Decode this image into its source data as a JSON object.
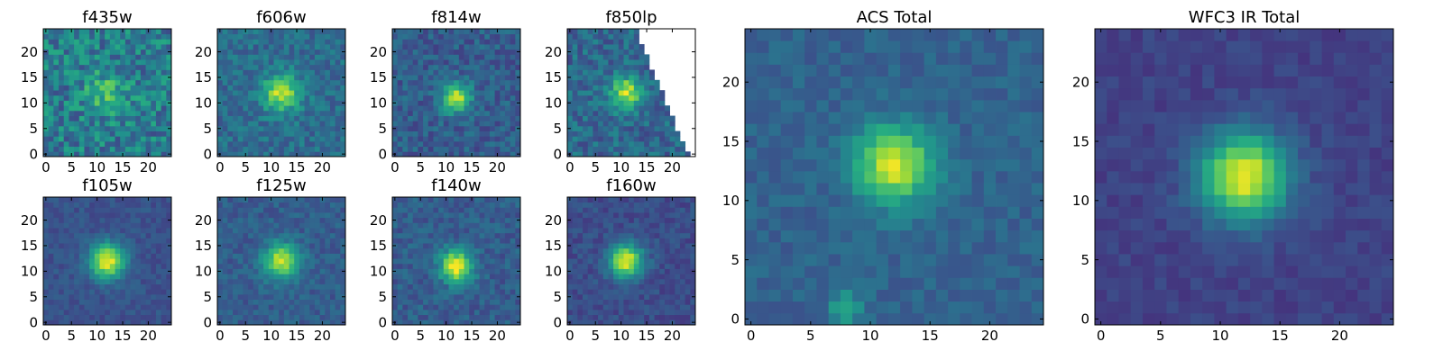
{
  "figure": {
    "colormap": "viridis",
    "background": "#ffffff",
    "frame_color": "#000000"
  },
  "chart_data": [
    {
      "type": "heatmap",
      "title": "f435w",
      "xlim": [
        0,
        24
      ],
      "ylim": [
        0,
        24
      ],
      "x_ticks": [
        0,
        5,
        10,
        15,
        20
      ],
      "y_ticks": [
        0,
        5,
        10,
        15,
        20
      ],
      "grid": false,
      "source_peak": [
        12,
        12
      ],
      "source_sigma": 3.0,
      "source_amplitude": 0.25,
      "noise_level": 0.38,
      "base_level": 0.42,
      "seed": 11,
      "masked_edge": false
    },
    {
      "type": "heatmap",
      "title": "f606w",
      "xlim": [
        0,
        24
      ],
      "ylim": [
        0,
        24
      ],
      "x_ticks": [
        0,
        5,
        10,
        15,
        20
      ],
      "y_ticks": [
        0,
        5,
        10,
        15,
        20
      ],
      "grid": false,
      "source_peak": [
        12,
        12
      ],
      "source_sigma": 2.5,
      "source_amplitude": 0.55,
      "noise_level": 0.22,
      "base_level": 0.36,
      "seed": 23,
      "masked_edge": false
    },
    {
      "type": "heatmap",
      "title": "f814w",
      "xlim": [
        0,
        24
      ],
      "ylim": [
        0,
        24
      ],
      "x_ticks": [
        0,
        5,
        10,
        15,
        20
      ],
      "y_ticks": [
        0,
        5,
        10,
        15,
        20
      ],
      "grid": false,
      "source_peak": [
        12,
        11
      ],
      "source_sigma": 2.0,
      "source_amplitude": 0.6,
      "noise_level": 0.22,
      "base_level": 0.3,
      "seed": 37,
      "masked_edge": false
    },
    {
      "type": "heatmap",
      "title": "f850lp",
      "xlim": [
        0,
        24
      ],
      "ylim": [
        0,
        24
      ],
      "x_ticks": [
        0,
        5,
        10,
        15,
        20
      ],
      "y_ticks": [
        0,
        5,
        10,
        15,
        20
      ],
      "grid": false,
      "source_peak": [
        11,
        12
      ],
      "source_sigma": 2.2,
      "source_amplitude": 0.55,
      "noise_level": 0.26,
      "base_level": 0.34,
      "seed": 41,
      "masked_edge": true
    },
    {
      "type": "heatmap",
      "title": "f105w",
      "xlim": [
        0,
        24
      ],
      "ylim": [
        0,
        24
      ],
      "x_ticks": [
        0,
        5,
        10,
        15,
        20
      ],
      "y_ticks": [
        0,
        5,
        10,
        15,
        20
      ],
      "grid": false,
      "source_peak": [
        12,
        12
      ],
      "source_sigma": 2.4,
      "source_amplitude": 0.72,
      "noise_level": 0.12,
      "base_level": 0.26,
      "seed": 53,
      "masked_edge": false
    },
    {
      "type": "heatmap",
      "title": "f125w",
      "xlim": [
        0,
        24
      ],
      "ylim": [
        0,
        24
      ],
      "x_ticks": [
        0,
        5,
        10,
        15,
        20
      ],
      "y_ticks": [
        0,
        5,
        10,
        15,
        20
      ],
      "grid": false,
      "source_peak": [
        12,
        12
      ],
      "source_sigma": 2.4,
      "source_amplitude": 0.62,
      "noise_level": 0.16,
      "base_level": 0.3,
      "seed": 61,
      "masked_edge": false
    },
    {
      "type": "heatmap",
      "title": "f140w",
      "xlim": [
        0,
        24
      ],
      "ylim": [
        0,
        24
      ],
      "x_ticks": [
        0,
        5,
        10,
        15,
        20
      ],
      "y_ticks": [
        0,
        5,
        10,
        15,
        20
      ],
      "grid": false,
      "source_peak": [
        12,
        11
      ],
      "source_sigma": 2.2,
      "source_amplitude": 0.7,
      "noise_level": 0.18,
      "base_level": 0.3,
      "seed": 71,
      "masked_edge": false
    },
    {
      "type": "heatmap",
      "title": "f160w",
      "xlim": [
        0,
        24
      ],
      "ylim": [
        0,
        24
      ],
      "x_ticks": [
        0,
        5,
        10,
        15,
        20
      ],
      "y_ticks": [
        0,
        5,
        10,
        15,
        20
      ],
      "grid": false,
      "source_peak": [
        11,
        12
      ],
      "source_sigma": 2.3,
      "source_amplitude": 0.74,
      "noise_level": 0.14,
      "base_level": 0.24,
      "seed": 83,
      "masked_edge": false
    },
    {
      "type": "heatmap",
      "title": "ACS Total",
      "xlim": [
        0,
        24
      ],
      "ylim": [
        0,
        24
      ],
      "x_ticks": [
        0,
        5,
        10,
        15,
        20
      ],
      "y_ticks": [
        0,
        5,
        10,
        15,
        20
      ],
      "grid": false,
      "source_peak": [
        12,
        13
      ],
      "source_sigma": 2.3,
      "source_amplitude": 0.62,
      "noise_level": 0.13,
      "base_level": 0.32,
      "seed": 97,
      "masked_edge": false,
      "secondary_peak": [
        8,
        1
      ],
      "secondary_amplitude": 0.3
    },
    {
      "type": "heatmap",
      "title": "WFC3 IR Total",
      "xlim": [
        0,
        24
      ],
      "ylim": [
        0,
        24
      ],
      "x_ticks": [
        0,
        5,
        10,
        15,
        20
      ],
      "y_ticks": [
        0,
        5,
        10,
        15,
        20
      ],
      "grid": false,
      "source_peak": [
        12,
        12
      ],
      "source_sigma": 2.6,
      "source_amplitude": 0.78,
      "noise_level": 0.09,
      "base_level": 0.2,
      "seed": 109,
      "masked_edge": false
    }
  ]
}
